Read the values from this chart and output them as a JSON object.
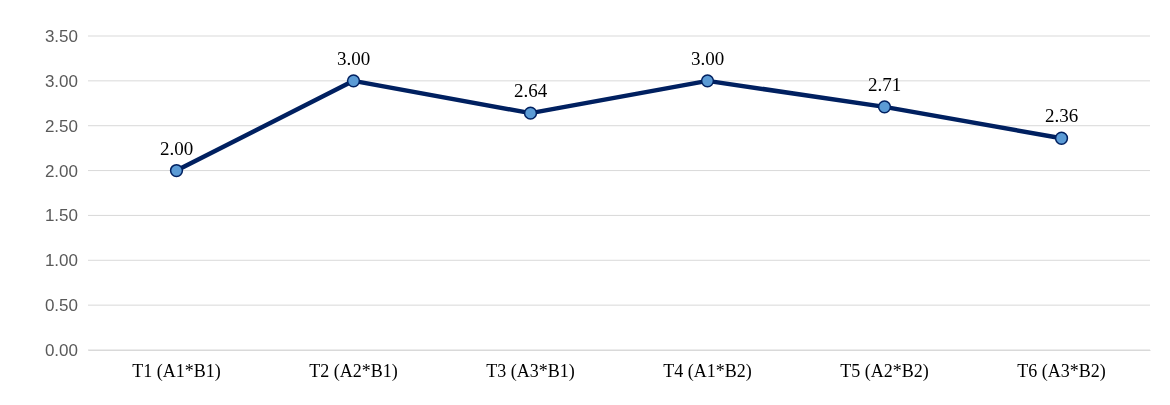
{
  "chart_data": {
    "type": "line",
    "categories": [
      "T1 (A1*B1)",
      "T2 (A2*B1)",
      "T3 (A3*B1)",
      "T4 (A1*B2)",
      "T5 (A2*B2)",
      "T6 (A3*B2)"
    ],
    "series": [
      {
        "color": "#002060",
        "values": [
          2.0,
          3.0,
          2.64,
          3.0,
          2.71,
          2.36
        ],
        "value_labels": [
          "2.00",
          "3.00",
          "2.64",
          "3.00",
          "2.71",
          "2.36"
        ]
      }
    ],
    "ylim": [
      0,
      3.5
    ],
    "yticks": [
      {
        "value": 0,
        "label": "0.00"
      },
      {
        "value": 0.5,
        "label": "0.50"
      },
      {
        "value": 1,
        "label": "1.00"
      },
      {
        "value": 1.5,
        "label": "1.50"
      },
      {
        "value": 2,
        "label": "2.00"
      },
      {
        "value": 2.5,
        "label": "2.50"
      },
      {
        "value": 3,
        "label": "3.00"
      },
      {
        "value": 3.5,
        "label": "3.50"
      }
    ],
    "grid": "y",
    "marker": "circle",
    "line_style": "solid"
  }
}
